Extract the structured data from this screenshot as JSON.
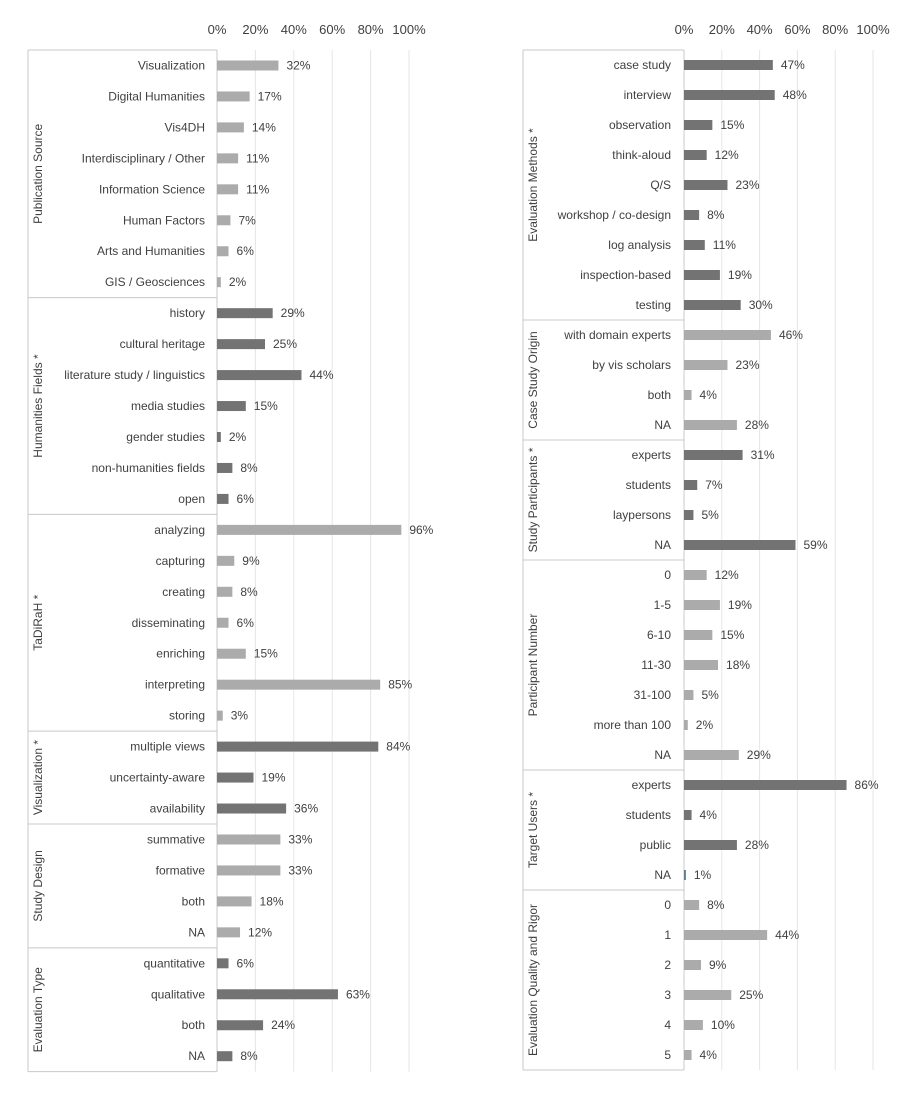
{
  "colors": {
    "dark": "#737373",
    "light": "#ababab",
    "special": "#5b7f95",
    "grid": "#e6e6e6",
    "axis": "#c8c8c8",
    "text": "#404040"
  },
  "chart_data": [
    {
      "type": "bar",
      "orientation": "horizontal",
      "xlim": [
        0,
        100
      ],
      "x_ticks": [
        "0%",
        "20%",
        "40%",
        "60%",
        "80%",
        "100%"
      ],
      "groups": [
        {
          "name": "Publication Source",
          "shade": "light",
          "categories": [
            "Visualization",
            "Digital Humanities",
            "Vis4DH",
            "Interdisciplinary / Other",
            "Information Science",
            "Human Factors",
            "Arts and Humanities",
            "GIS / Geosciences"
          ],
          "values": [
            32,
            17,
            14,
            11,
            11,
            7,
            6,
            2
          ],
          "labels": [
            "32%",
            "17%",
            "14%",
            "11%",
            "11%",
            "7%",
            "6%",
            "2%"
          ]
        },
        {
          "name": "Humanities Fields *",
          "shade": "dark",
          "categories": [
            "history",
            "cultural heritage",
            "literature study / linguistics",
            "media studies",
            "gender studies",
            "non-humanities fields",
            "open"
          ],
          "values": [
            29,
            25,
            44,
            15,
            2,
            8,
            6
          ],
          "labels": [
            "29%",
            "25%",
            "44%",
            "15%",
            "2%",
            "8%",
            "6%"
          ]
        },
        {
          "name": "TaDiRaH *",
          "shade": "light",
          "categories": [
            "analyzing",
            "capturing",
            "creating",
            "disseminating",
            "enriching",
            "interpreting",
            "storing"
          ],
          "values": [
            96,
            9,
            8,
            6,
            15,
            85,
            3
          ],
          "labels": [
            "96%",
            "9%",
            "8%",
            "6%",
            "15%",
            "85%",
            "3%"
          ]
        },
        {
          "name": "Visualization *",
          "shade": "dark",
          "categories": [
            "multiple views",
            "uncertainty-aware",
            "availability"
          ],
          "values": [
            84,
            19,
            36
          ],
          "labels": [
            "84%",
            "19%",
            "36%"
          ]
        },
        {
          "name": "Study Design",
          "shade": "light",
          "categories": [
            "summative",
            "formative",
            "both",
            "NA"
          ],
          "values": [
            33,
            33,
            18,
            12
          ],
          "labels": [
            "33%",
            "33%",
            "18%",
            "12%"
          ]
        },
        {
          "name": "Evaluation Type",
          "shade": "dark",
          "categories": [
            "quantitative",
            "qualitative",
            "both",
            "NA"
          ],
          "values": [
            6,
            63,
            24,
            8
          ],
          "labels": [
            "6%",
            "63%",
            "24%",
            "8%"
          ]
        }
      ]
    },
    {
      "type": "bar",
      "orientation": "horizontal",
      "xlim": [
        0,
        100
      ],
      "x_ticks": [
        "0%",
        "20%",
        "40%",
        "60%",
        "80%",
        "100%"
      ],
      "groups": [
        {
          "name": "Evaluation Methods *",
          "shade": "dark",
          "categories": [
            "case study",
            "interview",
            "observation",
            "think-aloud",
            "Q/S",
            "workshop / co-design",
            "log analysis",
            "inspection-based",
            "testing"
          ],
          "values": [
            47,
            48,
            15,
            12,
            23,
            8,
            11,
            19,
            30
          ],
          "labels": [
            "47%",
            "48%",
            "15%",
            "12%",
            "23%",
            "8%",
            "11%",
            "19%",
            "30%"
          ]
        },
        {
          "name": "Case Study Origin",
          "shade": "light",
          "categories": [
            "with domain experts",
            "by vis scholars",
            "both",
            "NA"
          ],
          "values": [
            46,
            23,
            4,
            28
          ],
          "labels": [
            "46%",
            "23%",
            "4%",
            "28%"
          ]
        },
        {
          "name": "Study Participants *",
          "shade": "dark",
          "categories": [
            "experts",
            "students",
            "laypersons",
            "NA"
          ],
          "values": [
            31,
            7,
            5,
            59
          ],
          "labels": [
            "31%",
            "7%",
            "5%",
            "59%"
          ]
        },
        {
          "name": "Participant Number",
          "shade": "light",
          "categories": [
            "0",
            "1-5",
            "6-10",
            "11-30",
            "31-100",
            "more than 100",
            "NA"
          ],
          "values": [
            12,
            19,
            15,
            18,
            5,
            2,
            29
          ],
          "labels": [
            "12%",
            "19%",
            "15%",
            "18%",
            "5%",
            "2%",
            "29%"
          ]
        },
        {
          "name": "Target Users *",
          "shade": "dark",
          "special_index": 3,
          "categories": [
            "experts",
            "students",
            "public",
            "NA"
          ],
          "values": [
            86,
            4,
            28,
            1
          ],
          "labels": [
            "86%",
            "4%",
            "28%",
            "1%"
          ]
        },
        {
          "name": "Evaluation Quality and Rigor",
          "shade": "light",
          "categories": [
            "0",
            "1",
            "2",
            "3",
            "4",
            "5"
          ],
          "values": [
            8,
            44,
            9,
            25,
            10,
            4
          ],
          "labels": [
            "8%",
            "44%",
            "9%",
            "25%",
            "10%",
            "4%"
          ]
        }
      ]
    }
  ]
}
